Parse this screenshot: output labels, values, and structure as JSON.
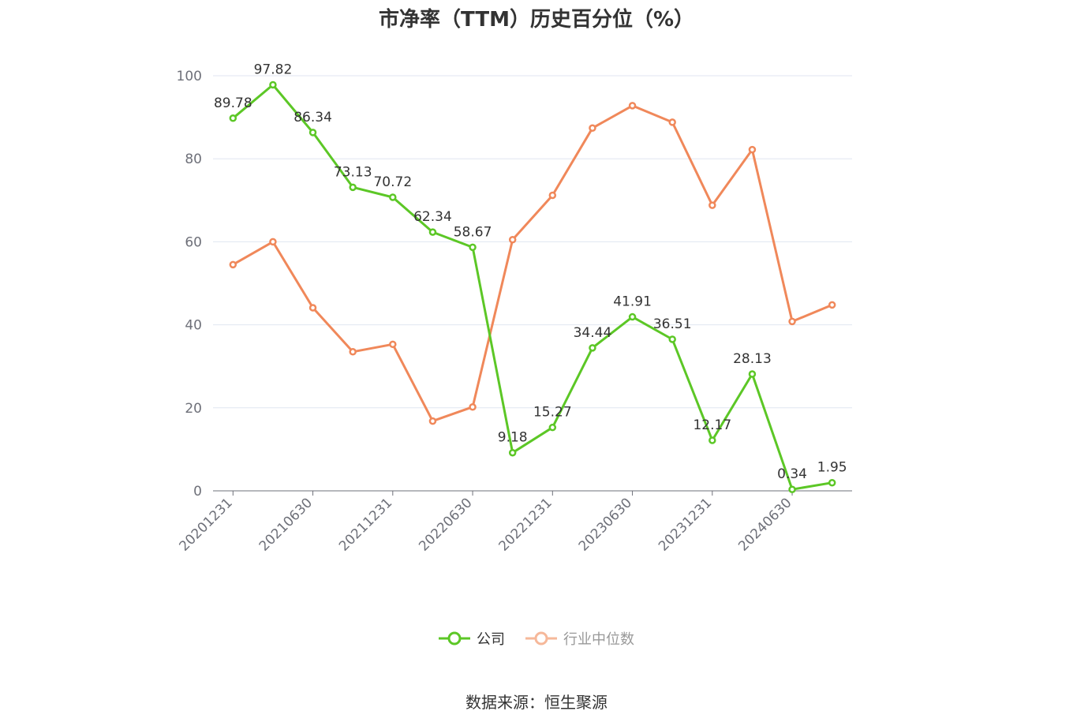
{
  "chart_data": {
    "type": "line",
    "title": "市净率（TTM）历史百分位（%）",
    "xlabel": "",
    "ylabel": "",
    "ylim": [
      0,
      100
    ],
    "yticks": [
      0,
      20,
      40,
      60,
      80,
      100
    ],
    "x": [
      "20201231",
      "20210331",
      "20210630",
      "20210930",
      "20211231",
      "20220331",
      "20220630",
      "20220930",
      "20221231",
      "20230331",
      "20230630",
      "20230930",
      "20231231",
      "20240331",
      "20240630",
      "20240930"
    ],
    "xtick_labels": [
      "20201231",
      "20210630",
      "20211231",
      "20220630",
      "20221231",
      "20230630",
      "20231231",
      "20240630"
    ],
    "grid": true,
    "legend_position": "bottom",
    "series": [
      {
        "name": "公司",
        "color": "#5cc726",
        "show_labels": true,
        "values": [
          89.78,
          97.82,
          86.34,
          73.13,
          70.72,
          62.34,
          58.67,
          9.18,
          15.27,
          34.44,
          41.91,
          36.51,
          12.17,
          28.13,
          0.34,
          1.95
        ]
      },
      {
        "name": "行业中位数",
        "color": "#f0885a",
        "show_labels": false,
        "values": [
          54.5,
          60.0,
          44.1,
          33.5,
          35.3,
          16.8,
          20.2,
          60.5,
          71.2,
          87.4,
          92.8,
          88.8,
          68.8,
          82.2,
          40.8,
          44.8
        ]
      }
    ]
  },
  "source_note": "数据来源：恒生聚源"
}
